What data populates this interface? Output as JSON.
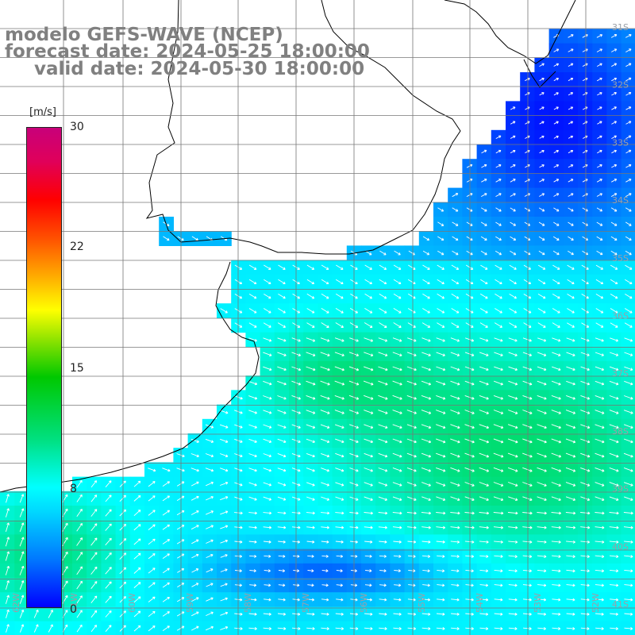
{
  "title": {
    "model": "modelo GEFS-WAVE (NCEP)",
    "forecast": "forecast date: 2024-05-25 18:00:00",
    "valid": "valid date: 2024-05-30 18:00:00"
  },
  "colorbar": {
    "unit": "[m/s]",
    "ticks": [
      "30",
      "22",
      "15",
      "8",
      "0"
    ]
  },
  "lat_labels": [
    "31S",
    "32S",
    "33S",
    "34S",
    "35S",
    "36S",
    "37S",
    "38S",
    "39S",
    "40S",
    "41S"
  ],
  "lon_labels": [
    "62W",
    "61W",
    "60W",
    "59W",
    "58W",
    "57W",
    "56W",
    "55W",
    "54W",
    "53W",
    "52W"
  ],
  "colors": {
    "land": "#ffffff",
    "grid": "#777777",
    "coast": "#000000",
    "arrow": "#ffffff"
  },
  "map_extent": {
    "lon": [
      -63,
      -52
    ],
    "lat": [
      -41,
      -30.5
    ]
  }
}
